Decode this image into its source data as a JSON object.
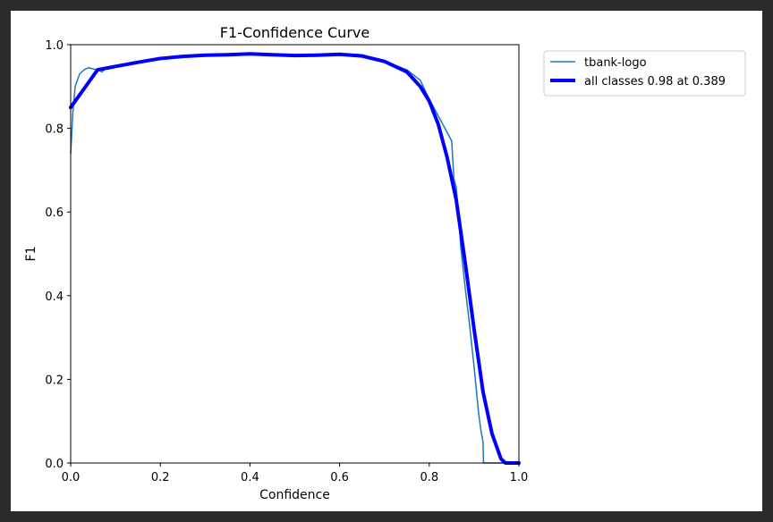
{
  "chart_data": {
    "type": "line",
    "title": "F1-Confidence Curve",
    "xlabel": "Confidence",
    "ylabel": "F1",
    "xlim": [
      0.0,
      1.0
    ],
    "ylim": [
      0.0,
      1.0
    ],
    "xticks": [
      0.0,
      0.2,
      0.4,
      0.6,
      0.8,
      1.0
    ],
    "yticks": [
      0.0,
      0.2,
      0.4,
      0.6,
      0.8,
      1.0
    ],
    "xtick_labels": [
      "0.0",
      "0.2",
      "0.4",
      "0.6",
      "0.8",
      "1.0"
    ],
    "ytick_labels": [
      "0.0",
      "0.2",
      "0.4",
      "0.6",
      "0.8",
      "1.0"
    ],
    "grid": false,
    "legend_position": "outside-top-right",
    "series": [
      {
        "name": "tbank-logo",
        "color": "#1f77b4",
        "x": [
          0.0,
          0.005,
          0.01,
          0.02,
          0.03,
          0.04,
          0.05,
          0.06,
          0.07,
          0.08,
          0.1,
          0.15,
          0.2,
          0.25,
          0.3,
          0.35,
          0.4,
          0.45,
          0.5,
          0.55,
          0.6,
          0.65,
          0.7,
          0.75,
          0.78,
          0.8,
          0.82,
          0.83,
          0.84,
          0.85,
          0.855,
          0.86,
          0.865,
          0.87,
          0.88,
          0.89,
          0.9,
          0.91,
          0.915,
          0.92,
          0.921,
          0.93,
          0.95,
          1.0
        ],
        "y": [
          0.74,
          0.84,
          0.9,
          0.93,
          0.94,
          0.945,
          0.942,
          0.94,
          0.935,
          0.945,
          0.948,
          0.958,
          0.968,
          0.972,
          0.975,
          0.976,
          0.978,
          0.975,
          0.972,
          0.975,
          0.978,
          0.976,
          0.96,
          0.94,
          0.915,
          0.87,
          0.83,
          0.81,
          0.79,
          0.77,
          0.68,
          0.66,
          0.6,
          0.52,
          0.42,
          0.33,
          0.23,
          0.12,
          0.08,
          0.05,
          0.0,
          0.0,
          0.0,
          0.0
        ]
      },
      {
        "name": "all classes 0.98 at 0.389",
        "color": "#0000ff",
        "x": [
          0.0,
          0.02,
          0.04,
          0.06,
          0.1,
          0.15,
          0.2,
          0.25,
          0.3,
          0.35,
          0.4,
          0.45,
          0.5,
          0.55,
          0.6,
          0.65,
          0.7,
          0.75,
          0.78,
          0.8,
          0.82,
          0.84,
          0.86,
          0.88,
          0.9,
          0.92,
          0.94,
          0.96,
          0.97,
          0.98,
          1.0
        ],
        "y": [
          0.85,
          0.88,
          0.91,
          0.94,
          0.948,
          0.958,
          0.967,
          0.972,
          0.975,
          0.976,
          0.978,
          0.976,
          0.974,
          0.975,
          0.977,
          0.973,
          0.96,
          0.935,
          0.9,
          0.865,
          0.81,
          0.73,
          0.63,
          0.48,
          0.32,
          0.17,
          0.07,
          0.01,
          0.0,
          0.0,
          0.0
        ]
      }
    ]
  }
}
